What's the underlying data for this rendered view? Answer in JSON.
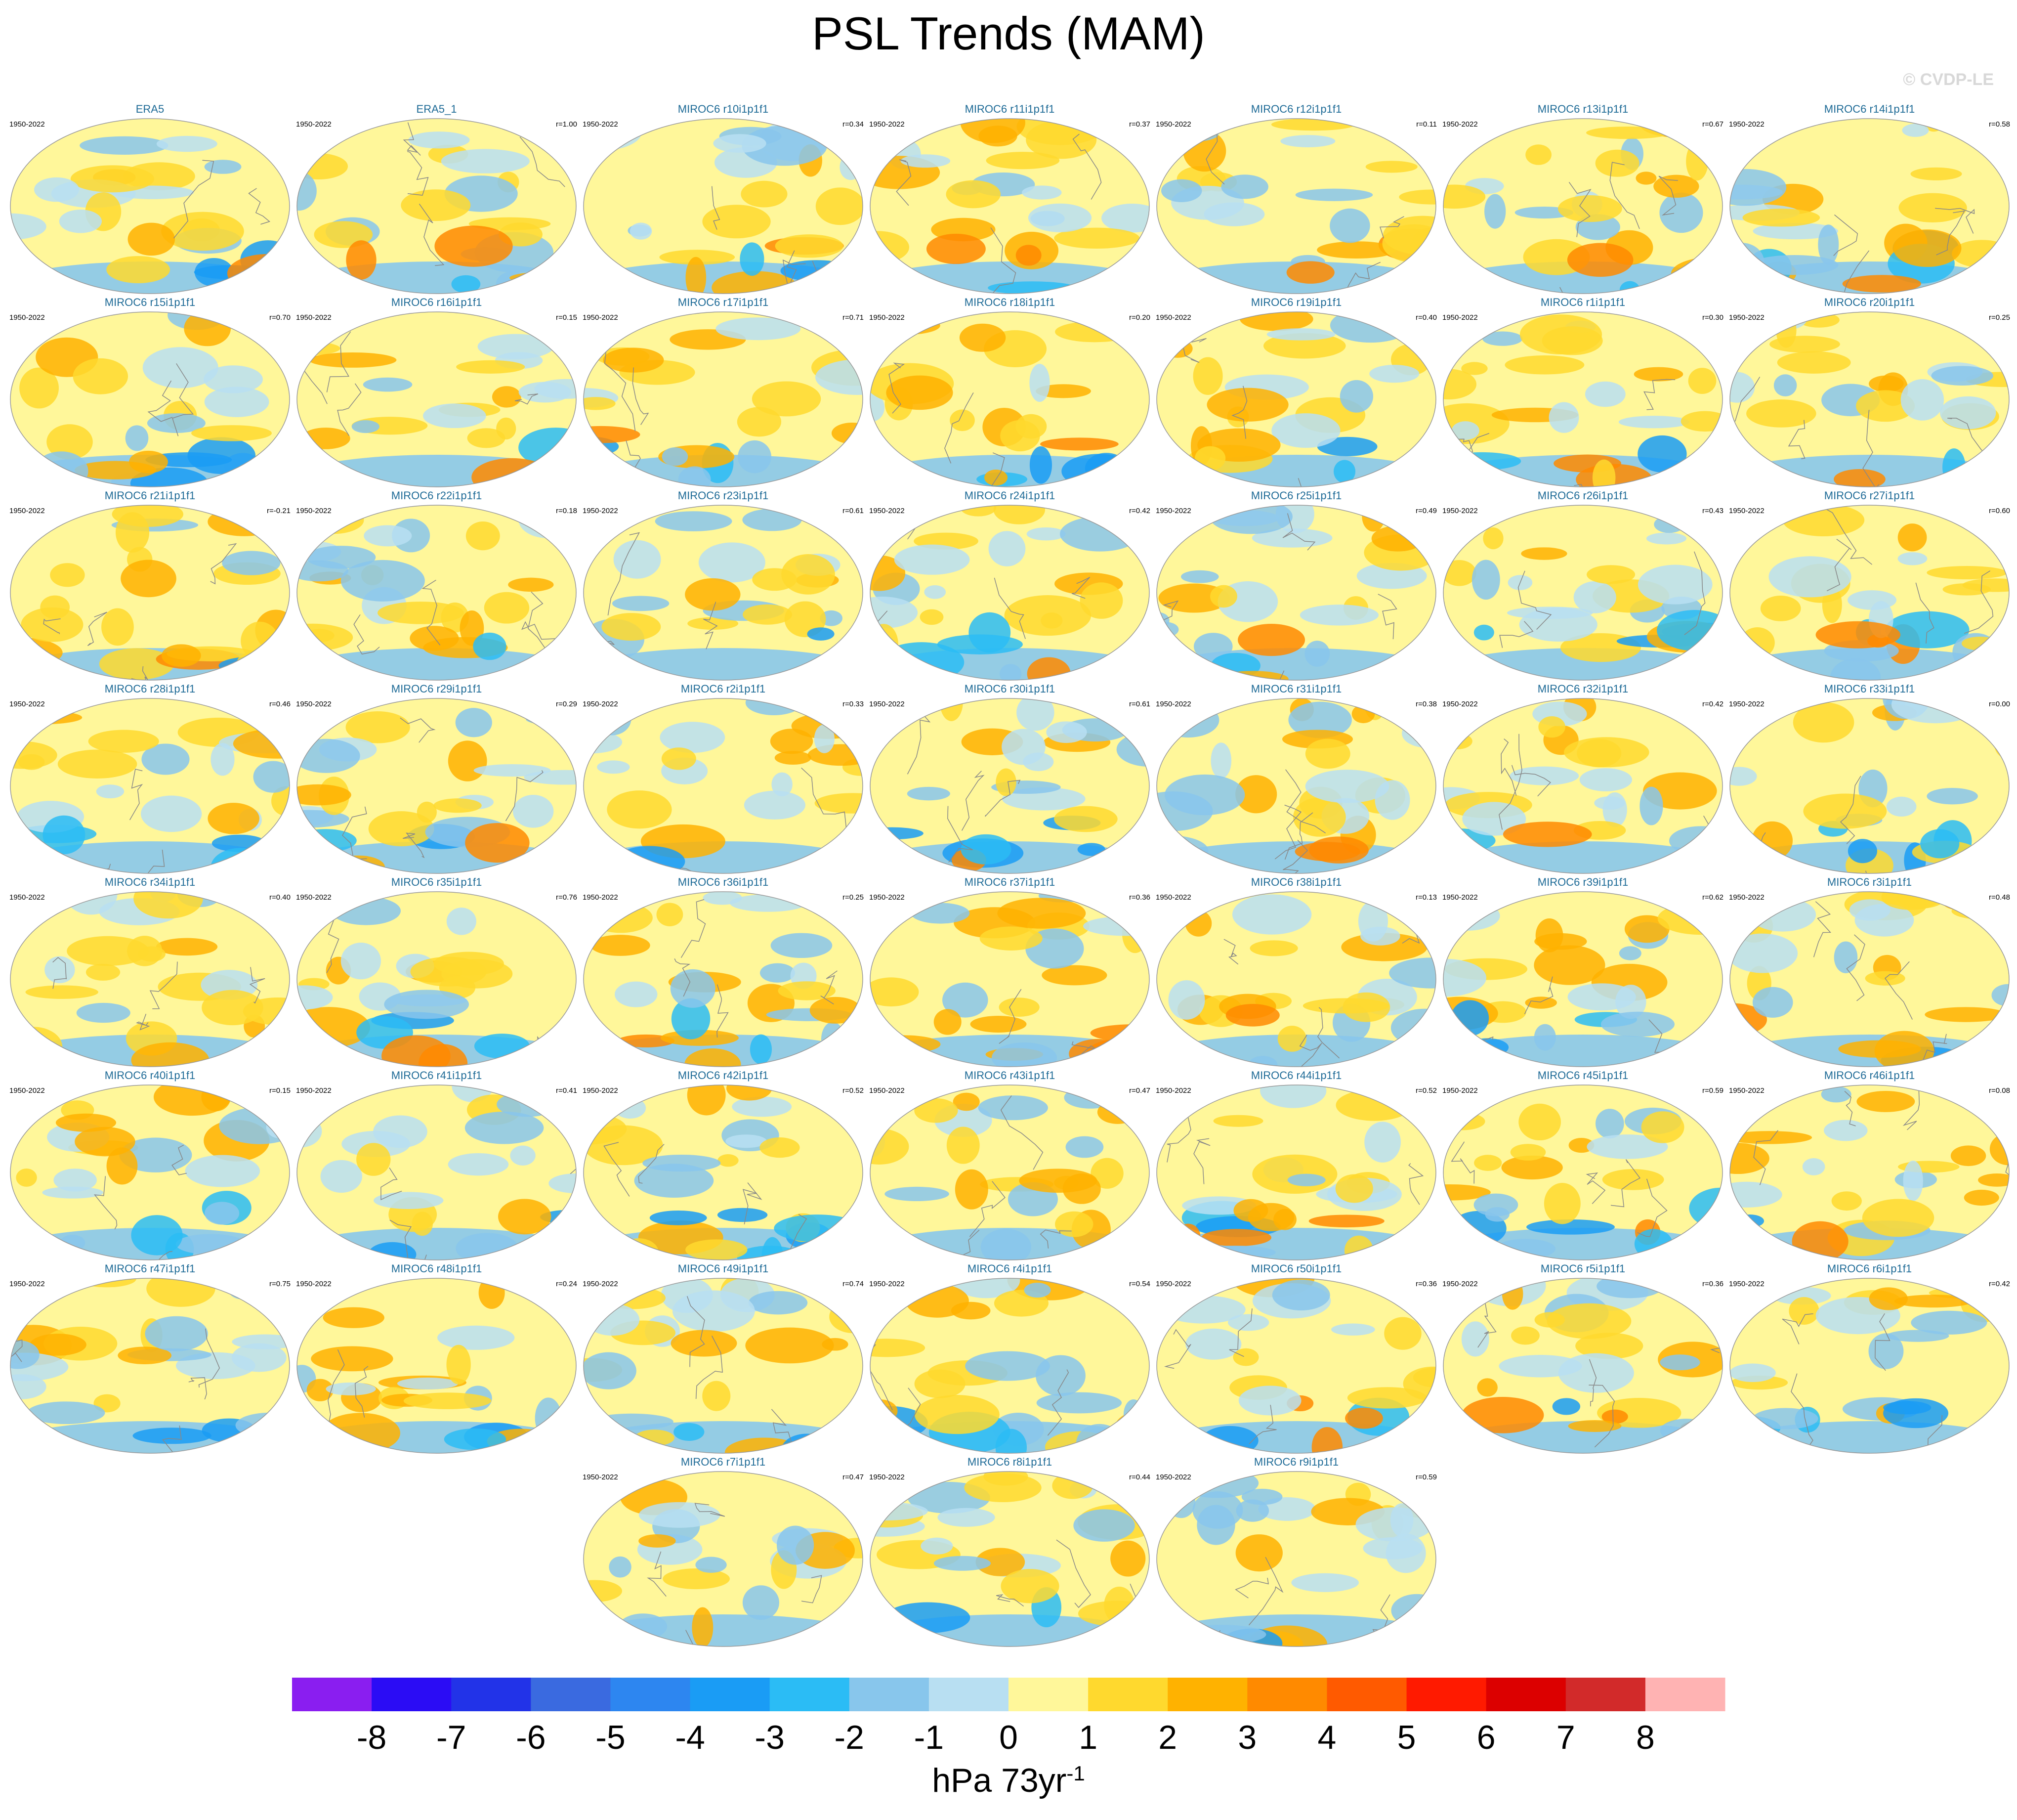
{
  "title": "PSL Trends (MAM)",
  "credit": "© CVDP-LE",
  "panels": [
    {
      "name": "ERA5",
      "period": "1950-2022"
    },
    {
      "name": "ERA5_1",
      "period": "1950-2022",
      "r": "r=1.00"
    },
    {
      "name": "MIROC6 r10i1p1f1",
      "period": "1950-2022",
      "r": "r=0.34"
    },
    {
      "name": "MIROC6 r11i1p1f1",
      "period": "1950-2022",
      "r": "r=0.37"
    },
    {
      "name": "MIROC6 r12i1p1f1",
      "period": "1950-2022",
      "r": "r=0.11"
    },
    {
      "name": "MIROC6 r13i1p1f1",
      "period": "1950-2022",
      "r": "r=0.67"
    },
    {
      "name": "MIROC6 r14i1p1f1",
      "period": "1950-2022",
      "r": "r=0.58"
    },
    {
      "name": "MIROC6 r15i1p1f1",
      "period": "1950-2022",
      "r": "r=0.70"
    },
    {
      "name": "MIROC6 r16i1p1f1",
      "period": "1950-2022",
      "r": "r=0.15"
    },
    {
      "name": "MIROC6 r17i1p1f1",
      "period": "1950-2022",
      "r": "r=0.71"
    },
    {
      "name": "MIROC6 r18i1p1f1",
      "period": "1950-2022",
      "r": "r=0.20"
    },
    {
      "name": "MIROC6 r19i1p1f1",
      "period": "1950-2022",
      "r": "r=0.40"
    },
    {
      "name": "MIROC6 r1i1p1f1",
      "period": "1950-2022",
      "r": "r=0.30"
    },
    {
      "name": "MIROC6 r20i1p1f1",
      "period": "1950-2022",
      "r": "r=0.25"
    },
    {
      "name": "MIROC6 r21i1p1f1",
      "period": "1950-2022",
      "r": "r=-0.21"
    },
    {
      "name": "MIROC6 r22i1p1f1",
      "period": "1950-2022",
      "r": "r=0.18"
    },
    {
      "name": "MIROC6 r23i1p1f1",
      "period": "1950-2022",
      "r": "r=0.61"
    },
    {
      "name": "MIROC6 r24i1p1f1",
      "period": "1950-2022",
      "r": "r=0.42"
    },
    {
      "name": "MIROC6 r25i1p1f1",
      "period": "1950-2022",
      "r": "r=0.49"
    },
    {
      "name": "MIROC6 r26i1p1f1",
      "period": "1950-2022",
      "r": "r=0.43"
    },
    {
      "name": "MIROC6 r27i1p1f1",
      "period": "1950-2022",
      "r": "r=0.60"
    },
    {
      "name": "MIROC6 r28i1p1f1",
      "period": "1950-2022",
      "r": "r=0.46"
    },
    {
      "name": "MIROC6 r29i1p1f1",
      "period": "1950-2022",
      "r": "r=0.29"
    },
    {
      "name": "MIROC6 r2i1p1f1",
      "period": "1950-2022",
      "r": "r=0.33"
    },
    {
      "name": "MIROC6 r30i1p1f1",
      "period": "1950-2022",
      "r": "r=0.61"
    },
    {
      "name": "MIROC6 r31i1p1f1",
      "period": "1950-2022",
      "r": "r=0.38"
    },
    {
      "name": "MIROC6 r32i1p1f1",
      "period": "1950-2022",
      "r": "r=0.42"
    },
    {
      "name": "MIROC6 r33i1p1f1",
      "period": "1950-2022",
      "r": "r=0.00"
    },
    {
      "name": "MIROC6 r34i1p1f1",
      "period": "1950-2022",
      "r": "r=0.40"
    },
    {
      "name": "MIROC6 r35i1p1f1",
      "period": "1950-2022",
      "r": "r=0.76"
    },
    {
      "name": "MIROC6 r36i1p1f1",
      "period": "1950-2022",
      "r": "r=0.25"
    },
    {
      "name": "MIROC6 r37i1p1f1",
      "period": "1950-2022",
      "r": "r=0.36"
    },
    {
      "name": "MIROC6 r38i1p1f1",
      "period": "1950-2022",
      "r": "r=0.13"
    },
    {
      "name": "MIROC6 r39i1p1f1",
      "period": "1950-2022",
      "r": "r=0.62"
    },
    {
      "name": "MIROC6 r3i1p1f1",
      "period": "1950-2022",
      "r": "r=0.48"
    },
    {
      "name": "MIROC6 r40i1p1f1",
      "period": "1950-2022",
      "r": "r=0.15"
    },
    {
      "name": "MIROC6 r41i1p1f1",
      "period": "1950-2022",
      "r": "r=0.41"
    },
    {
      "name": "MIROC6 r42i1p1f1",
      "period": "1950-2022",
      "r": "r=0.52"
    },
    {
      "name": "MIROC6 r43i1p1f1",
      "period": "1950-2022",
      "r": "r=0.47"
    },
    {
      "name": "MIROC6 r44i1p1f1",
      "period": "1950-2022",
      "r": "r=0.52"
    },
    {
      "name": "MIROC6 r45i1p1f1",
      "period": "1950-2022",
      "r": "r=0.59"
    },
    {
      "name": "MIROC6 r46i1p1f1",
      "period": "1950-2022",
      "r": "r=0.08"
    },
    {
      "name": "MIROC6 r47i1p1f1",
      "period": "1950-2022",
      "r": "r=0.75"
    },
    {
      "name": "MIROC6 r48i1p1f1",
      "period": "1950-2022",
      "r": "r=0.24"
    },
    {
      "name": "MIROC6 r49i1p1f1",
      "period": "1950-2022",
      "r": "r=0.74"
    },
    {
      "name": "MIROC6 r4i1p1f1",
      "period": "1950-2022",
      "r": "r=0.54"
    },
    {
      "name": "MIROC6 r50i1p1f1",
      "period": "1950-2022",
      "r": "r=0.36"
    },
    {
      "name": "MIROC6 r5i1p1f1",
      "period": "1950-2022",
      "r": "r=0.36"
    },
    {
      "name": "MIROC6 r6i1p1f1",
      "period": "1950-2022",
      "r": "r=0.42"
    },
    {
      "name": "MIROC6 r7i1p1f1",
      "period": "1950-2022",
      "r": "r=0.47"
    },
    {
      "name": "MIROC6 r8i1p1f1",
      "period": "1950-2022",
      "r": "r=0.44"
    },
    {
      "name": "MIROC6 r9i1p1f1",
      "period": "1950-2022",
      "r": "r=0.59"
    }
  ],
  "colorbar": {
    "colors": [
      "#8a1ef0",
      "#2b0cf5",
      "#2233e8",
      "#3a6ae0",
      "#2d86f0",
      "#1a9cf5",
      "#2bbcf5",
      "#88c6ec",
      "#b8dff2",
      "#fff79a",
      "#ffd92e",
      "#ffb200",
      "#ff8a00",
      "#ff5a00",
      "#ff1a00",
      "#dc0000",
      "#d22a2a",
      "#ffb3b3"
    ],
    "ticks": [
      -8,
      -7,
      -6,
      -5,
      -4,
      -3,
      -2,
      -1,
      0,
      1,
      2,
      3,
      4,
      5,
      6,
      7,
      8
    ],
    "unit": "hPa 73yr",
    "unit_exponent": "-1"
  }
}
